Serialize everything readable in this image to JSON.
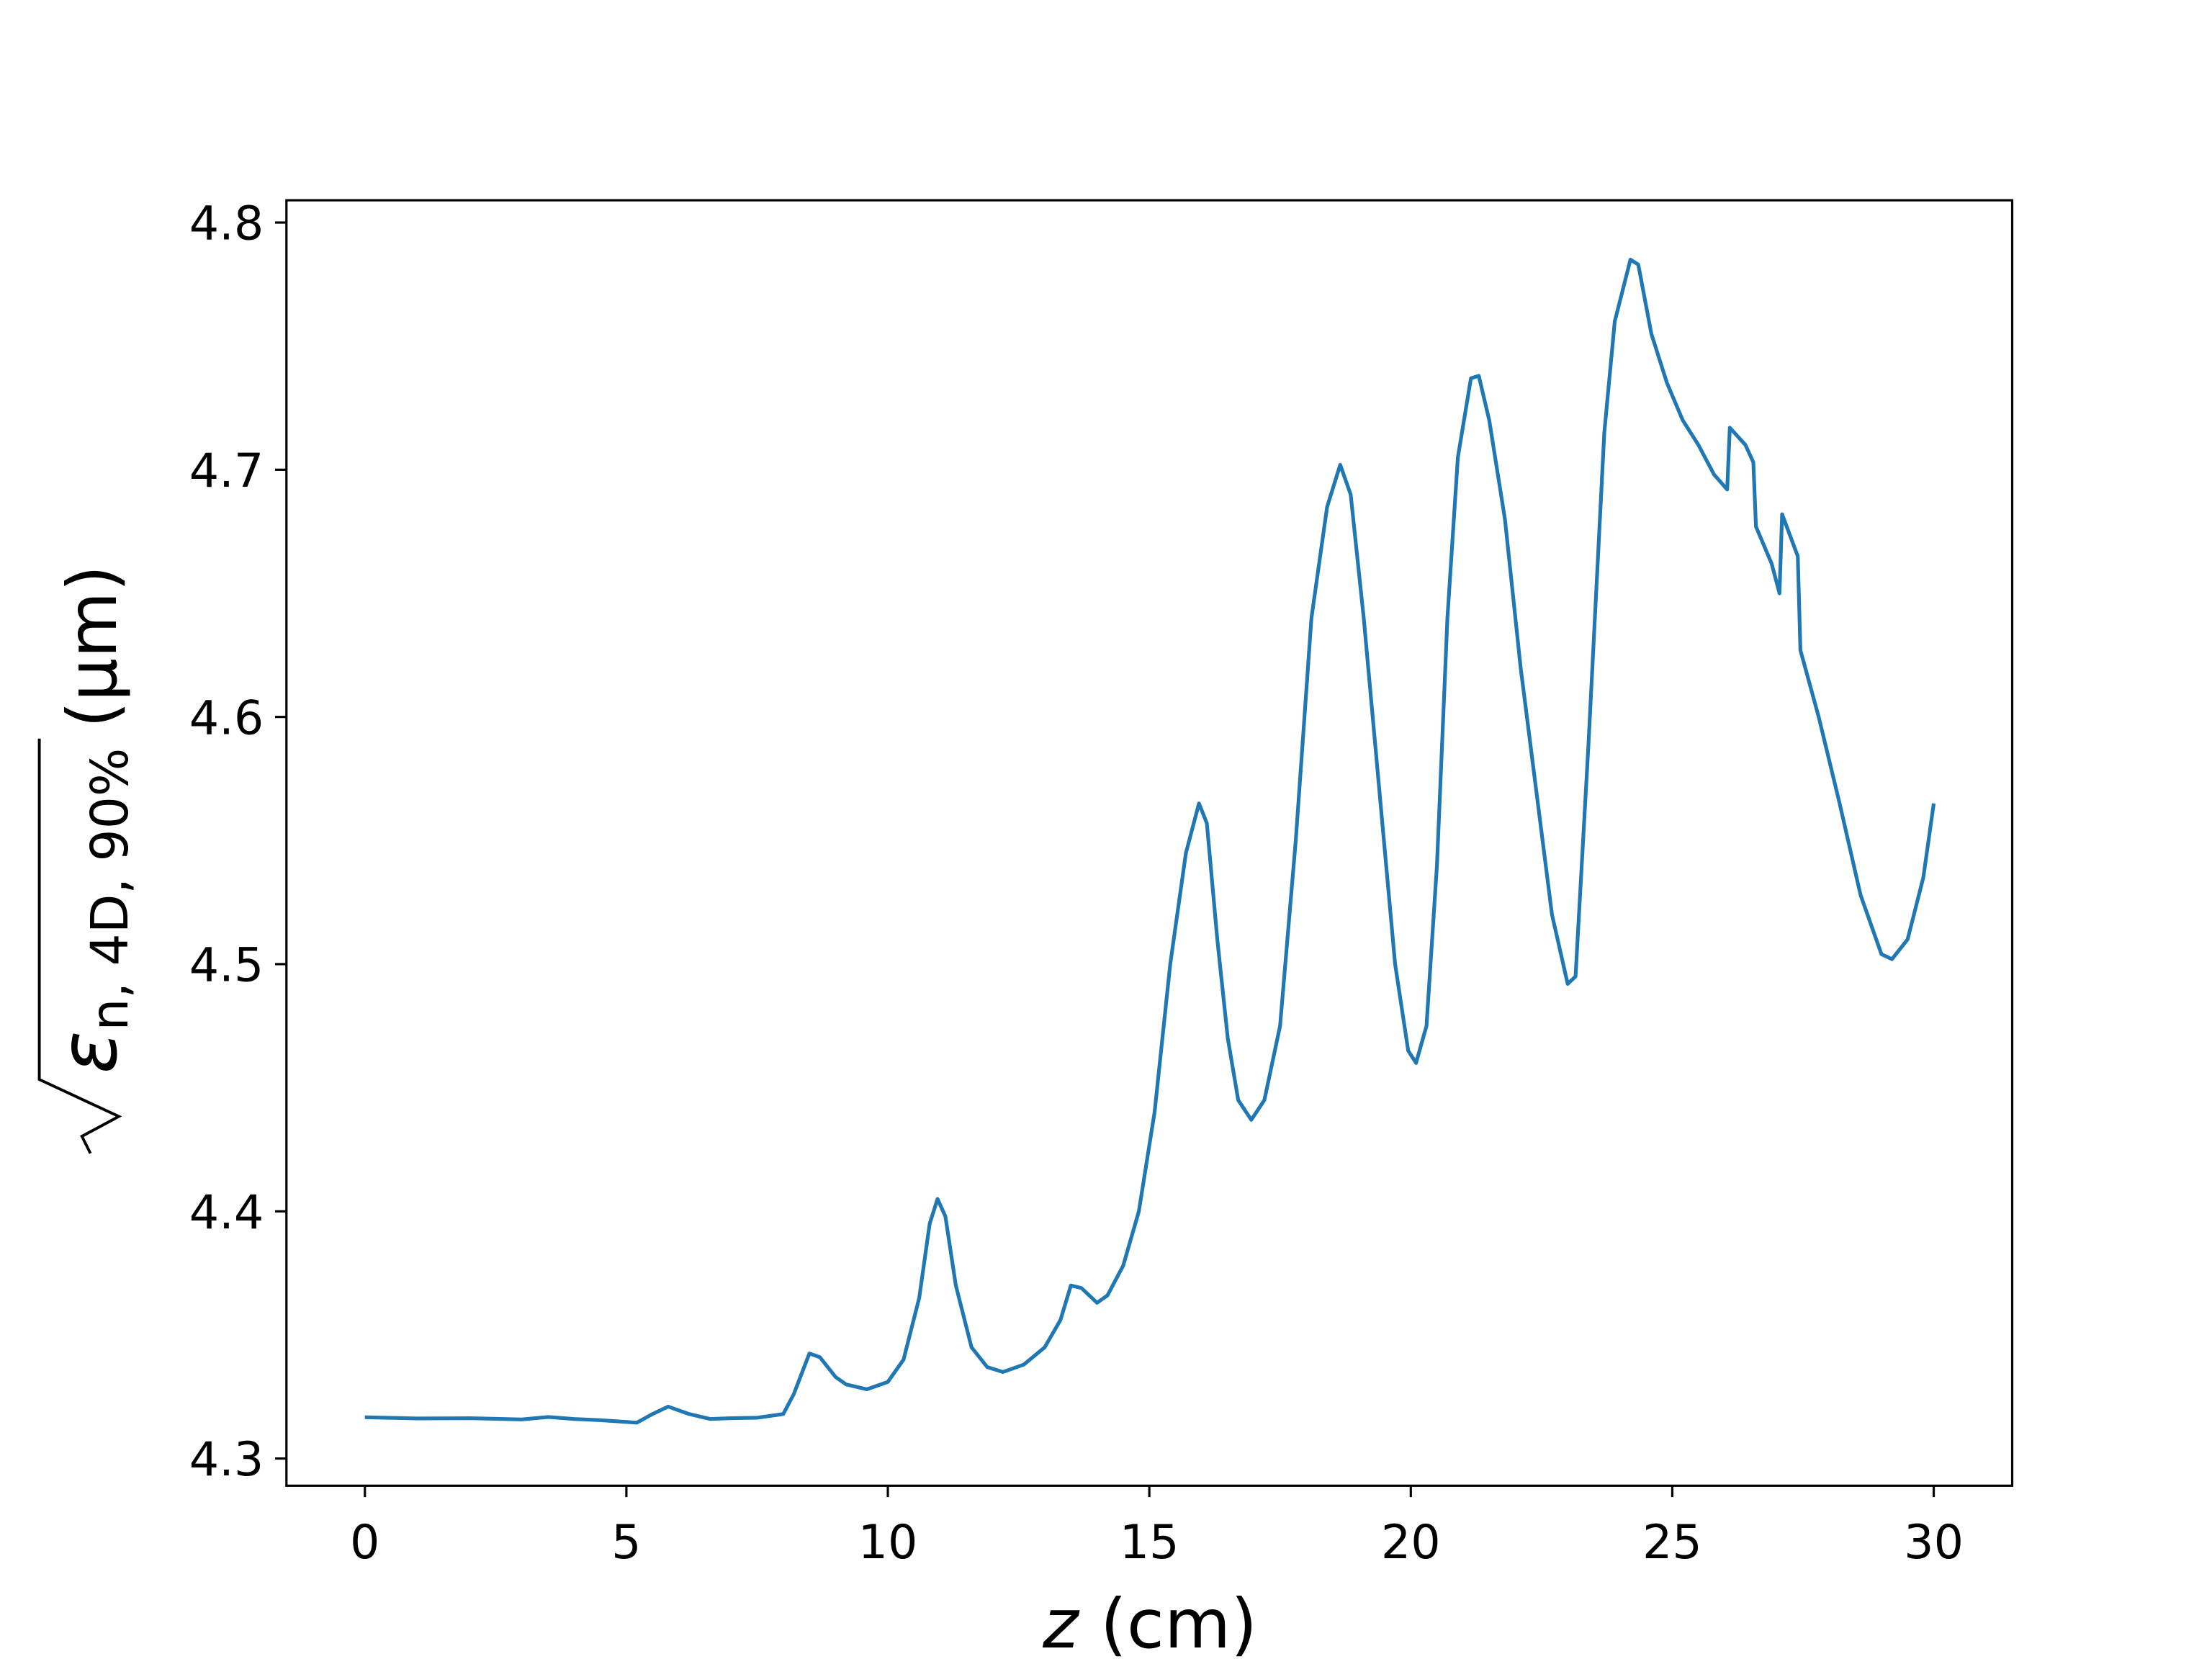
{
  "chart_data": {
    "type": "line",
    "xlabel": {
      "variable": "z",
      "unit": "(cm)"
    },
    "ylabel": {
      "symbol": "ε",
      "subscript": "n, 4D, 90%",
      "unit": "(μm)"
    },
    "x": [
      0,
      1,
      2,
      3,
      3.5,
      4,
      4.5,
      5,
      5.2,
      5.5,
      5.8,
      6.2,
      6.6,
      7,
      7.5,
      8,
      8.2,
      8.5,
      8.7,
      9,
      9.2,
      9.6,
      10,
      10.3,
      10.6,
      10.8,
      10.95,
      11.1,
      11.3,
      11.6,
      11.9,
      12.2,
      12.6,
      13,
      13.3,
      13.5,
      13.7,
      14,
      14.2,
      14.5,
      14.8,
      15.1,
      15.4,
      15.7,
      15.95,
      16.1,
      16.3,
      16.5,
      16.7,
      16.95,
      17.2,
      17.5,
      17.8,
      18.1,
      18.4,
      18.65,
      18.85,
      19.1,
      19.4,
      19.7,
      19.95,
      20.1,
      20.3,
      20.5,
      20.7,
      20.9,
      21.15,
      21.3,
      21.5,
      21.8,
      22.1,
      22.4,
      22.7,
      23,
      23.15,
      23.4,
      23.7,
      23.9,
      24.2,
      24.35,
      24.6,
      24.9,
      25.2,
      25.5,
      25.8,
      26.05,
      26.1,
      26.4,
      26.55,
      26.6,
      26.9,
      27.05,
      27.1,
      27.4,
      27.45,
      27.8,
      28.2,
      28.6,
      29,
      29.2,
      29.5,
      29.8,
      30
    ],
    "series": [
      {
        "color": "#1f77b4",
        "values": [
          4.3167,
          4.3162,
          4.3163,
          4.3158,
          4.3168,
          4.316,
          4.3155,
          4.3148,
          4.3145,
          4.318,
          4.321,
          4.318,
          4.316,
          4.3163,
          4.3165,
          4.318,
          4.326,
          4.3425,
          4.341,
          4.333,
          4.33,
          4.328,
          4.331,
          4.34,
          4.365,
          4.395,
          4.405,
          4.398,
          4.37,
          4.345,
          4.337,
          4.335,
          4.338,
          4.345,
          4.356,
          4.37,
          4.369,
          4.363,
          4.366,
          4.378,
          4.4,
          4.44,
          4.5,
          4.545,
          4.565,
          4.557,
          4.51,
          4.47,
          4.445,
          4.437,
          4.445,
          4.475,
          4.55,
          4.64,
          4.685,
          4.702,
          4.69,
          4.64,
          4.57,
          4.5,
          4.465,
          4.46,
          4.475,
          4.54,
          4.64,
          4.705,
          4.737,
          4.738,
          4.72,
          4.68,
          4.62,
          4.57,
          4.52,
          4.492,
          4.495,
          4.59,
          4.715,
          4.76,
          4.785,
          4.783,
          4.755,
          4.735,
          4.72,
          4.71,
          4.698,
          4.692,
          4.717,
          4.71,
          4.703,
          4.677,
          4.662,
          4.65,
          4.682,
          4.665,
          4.627,
          4.6,
          4.565,
          4.528,
          4.504,
          4.502,
          4.51,
          4.535,
          4.565
        ]
      }
    ],
    "xlim": [
      -1.5,
      31.5
    ],
    "ylim": [
      4.289,
      4.809
    ],
    "xticks": [
      0,
      5,
      10,
      15,
      20,
      25,
      30
    ],
    "yticks": [
      4.3,
      4.4,
      4.5,
      4.6,
      4.7,
      4.8
    ]
  }
}
